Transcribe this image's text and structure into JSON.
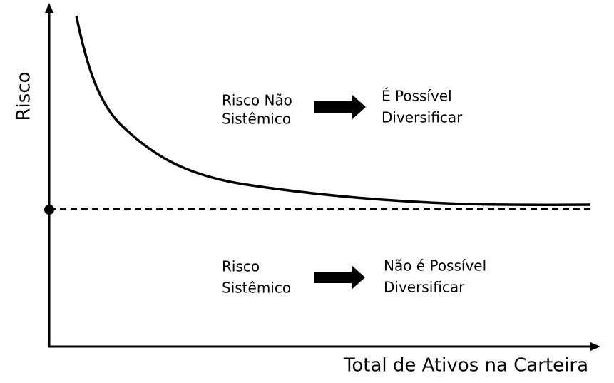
{
  "y_axis_label": "Risco",
  "x_axis_label": "Total de Ativos na Carteira",
  "annotations": [
    {
      "risk": [
        "Risco Não",
        "Sistêmico"
      ],
      "result": [
        "É Possível",
        "Diversificar"
      ]
    },
    {
      "risk": [
        "Risco",
        "Sistêmico"
      ],
      "result": [
        "Não é Possível",
        "Diversificar"
      ]
    }
  ]
}
